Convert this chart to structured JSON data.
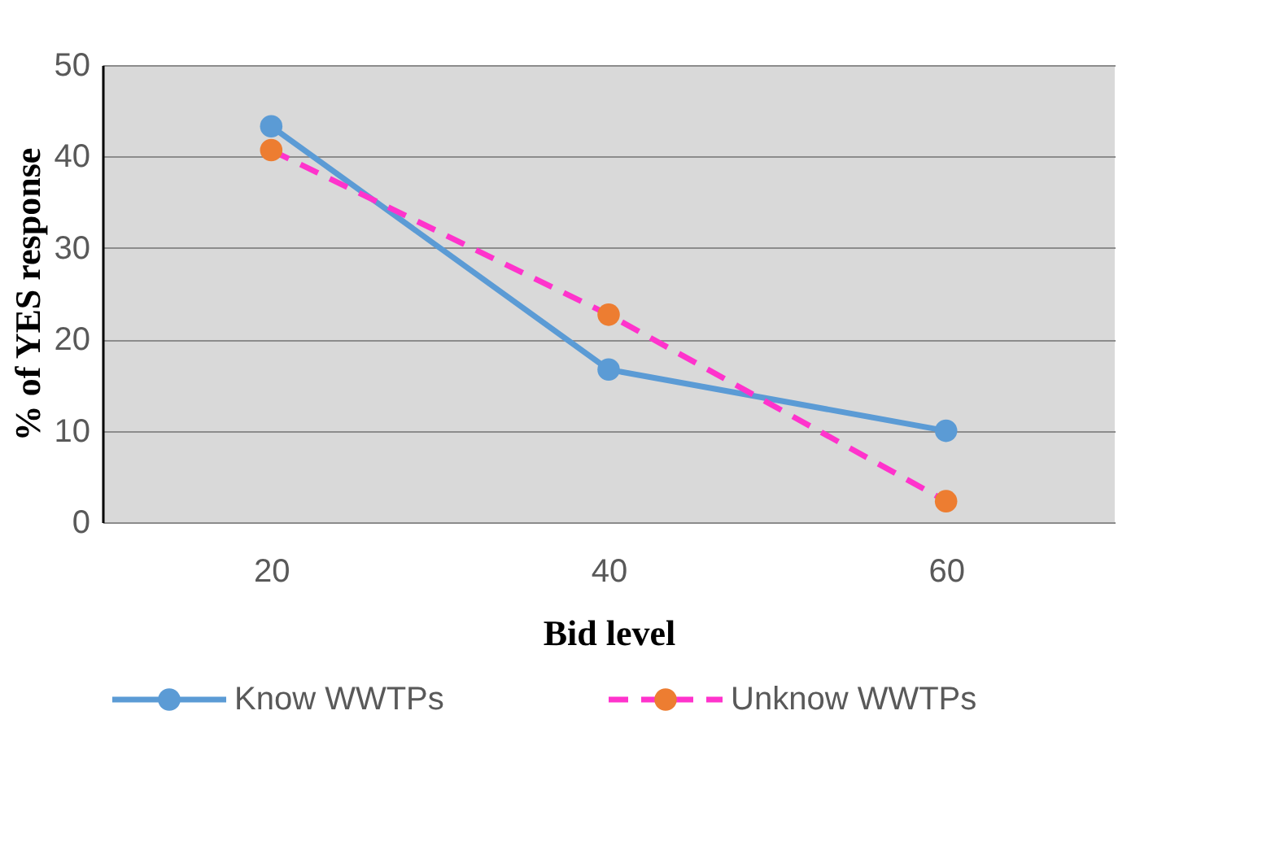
{
  "chart_data": {
    "type": "line",
    "xlabel": "Bid level",
    "ylabel": "% of YES response",
    "categories": [
      "20",
      "40",
      "60"
    ],
    "series": [
      {
        "name": "Know WWTPs",
        "color": "#5b9bd5",
        "values": [
          43.3,
          16.7,
          10
        ],
        "line_style": "solid"
      },
      {
        "name": "Unknow WWTPs",
        "color": "#ff33cc",
        "colors": [
          "#ed7d31",
          "#ed7d31",
          "#ed7d31"
        ],
        "values": [
          40.7,
          22.7,
          2.3
        ],
        "line_style": "dashed"
      }
    ],
    "ylim": [
      0,
      50
    ],
    "yticks": [
      0,
      10,
      20,
      30,
      40,
      50
    ],
    "grid": "y",
    "legend": "bottom",
    "marker": "circle"
  }
}
